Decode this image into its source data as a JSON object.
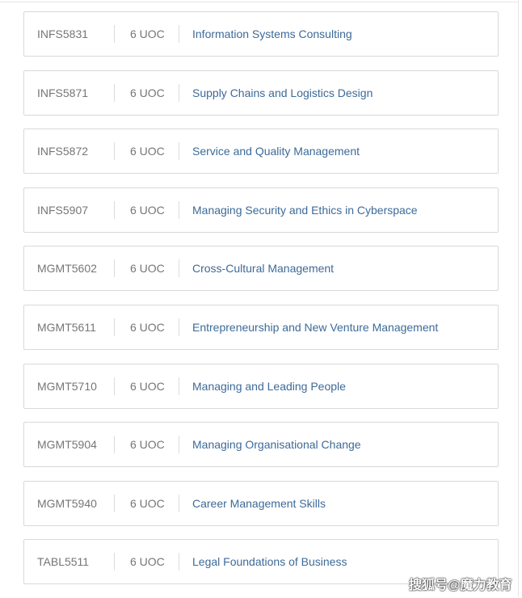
{
  "courses": [
    {
      "code": "INFS5831",
      "uoc": "6 UOC",
      "title": "Information Systems Consulting"
    },
    {
      "code": "INFS5871",
      "uoc": "6 UOC",
      "title": "Supply Chains and Logistics Design"
    },
    {
      "code": "INFS5872",
      "uoc": "6 UOC",
      "title": "Service and Quality Management"
    },
    {
      "code": "INFS5907",
      "uoc": "6 UOC",
      "title": "Managing Security and Ethics in Cyberspace"
    },
    {
      "code": "MGMT5602",
      "uoc": "6 UOC",
      "title": "Cross-Cultural Management"
    },
    {
      "code": "MGMT5611",
      "uoc": "6 UOC",
      "title": "Entrepreneurship and New Venture Management"
    },
    {
      "code": "MGMT5710",
      "uoc": "6 UOC",
      "title": "Managing and Leading People"
    },
    {
      "code": "MGMT5904",
      "uoc": "6 UOC",
      "title": "Managing Organisational Change"
    },
    {
      "code": "MGMT5940",
      "uoc": "6 UOC",
      "title": "Career Management Skills"
    },
    {
      "code": "TABL5511",
      "uoc": "6 UOC",
      "title": "Legal Foundations of Business"
    }
  ],
  "watermark": "搜狐号@魔力教育",
  "colors": {
    "title": "#3d6a98",
    "code": "#767676",
    "border": "#d9d9d9"
  }
}
